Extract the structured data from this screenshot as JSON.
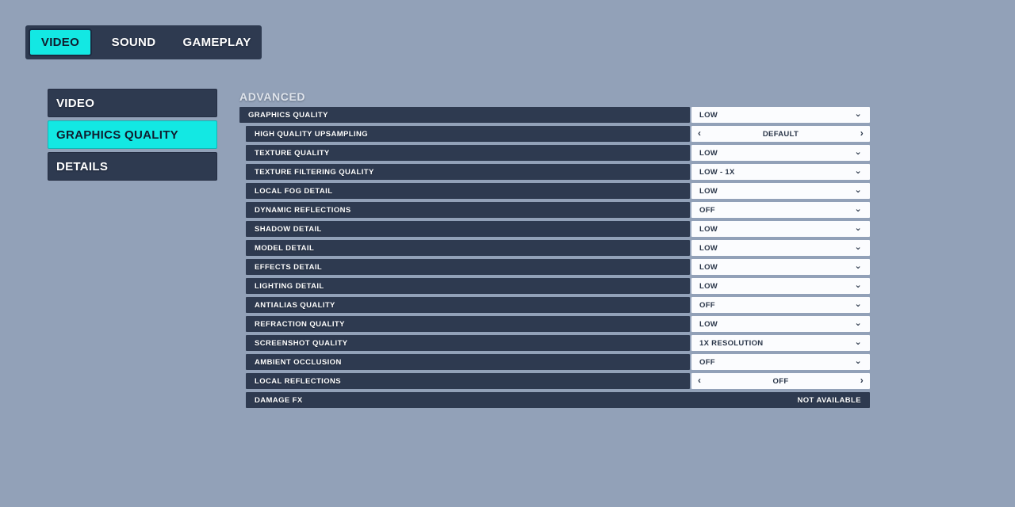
{
  "colors": {
    "background": "#92A1B8",
    "panel_dark": "#2E3A50",
    "accent_cyan": "#13E8E3",
    "control_white": "#FBFCFE",
    "value_text": "#2A3649"
  },
  "top_tabs": {
    "items": [
      {
        "label": "VIDEO",
        "active": true
      },
      {
        "label": "SOUND",
        "active": false
      },
      {
        "label": "GAMEPLAY",
        "active": false
      }
    ]
  },
  "sidebar": {
    "items": [
      {
        "label": "VIDEO",
        "active": false
      },
      {
        "label": "GRAPHICS QUALITY",
        "active": true
      },
      {
        "label": "DETAILS",
        "active": false
      }
    ]
  },
  "main": {
    "section_title": "ADVANCED",
    "icons": {
      "dropdown_chevron": "⌄",
      "stepper_left": "‹",
      "stepper_right": "›"
    },
    "rows": [
      {
        "label": "GRAPHICS QUALITY",
        "control": "dropdown",
        "value": "LOW",
        "indent": 0
      },
      {
        "label": "HIGH QUALITY UPSAMPLING",
        "control": "stepper",
        "value": "DEFAULT",
        "indent": 1
      },
      {
        "label": "TEXTURE QUALITY",
        "control": "dropdown",
        "value": "LOW",
        "indent": 1
      },
      {
        "label": "TEXTURE FILTERING QUALITY",
        "control": "dropdown",
        "value": "LOW - 1X",
        "indent": 1
      },
      {
        "label": "LOCAL FOG DETAIL",
        "control": "dropdown",
        "value": "LOW",
        "indent": 1
      },
      {
        "label": "DYNAMIC REFLECTIONS",
        "control": "dropdown",
        "value": "OFF",
        "indent": 1
      },
      {
        "label": "SHADOW DETAIL",
        "control": "dropdown",
        "value": "LOW",
        "indent": 1
      },
      {
        "label": "MODEL DETAIL",
        "control": "dropdown",
        "value": "LOW",
        "indent": 1
      },
      {
        "label": "EFFECTS DETAIL",
        "control": "dropdown",
        "value": "LOW",
        "indent": 1
      },
      {
        "label": "LIGHTING DETAIL",
        "control": "dropdown",
        "value": "LOW",
        "indent": 1
      },
      {
        "label": "ANTIALIAS QUALITY",
        "control": "dropdown",
        "value": "OFF",
        "indent": 1
      },
      {
        "label": "REFRACTION QUALITY",
        "control": "dropdown",
        "value": "LOW",
        "indent": 1
      },
      {
        "label": "SCREENSHOT QUALITY",
        "control": "dropdown",
        "value": "1X RESOLUTION",
        "indent": 1
      },
      {
        "label": "AMBIENT OCCLUSION",
        "control": "dropdown",
        "value": "OFF",
        "indent": 1
      },
      {
        "label": "LOCAL REFLECTIONS",
        "control": "stepper",
        "value": "OFF",
        "indent": 1
      },
      {
        "label": "DAMAGE FX",
        "control": "unavailable",
        "value": "NOT AVAILABLE",
        "indent": 1
      }
    ]
  }
}
